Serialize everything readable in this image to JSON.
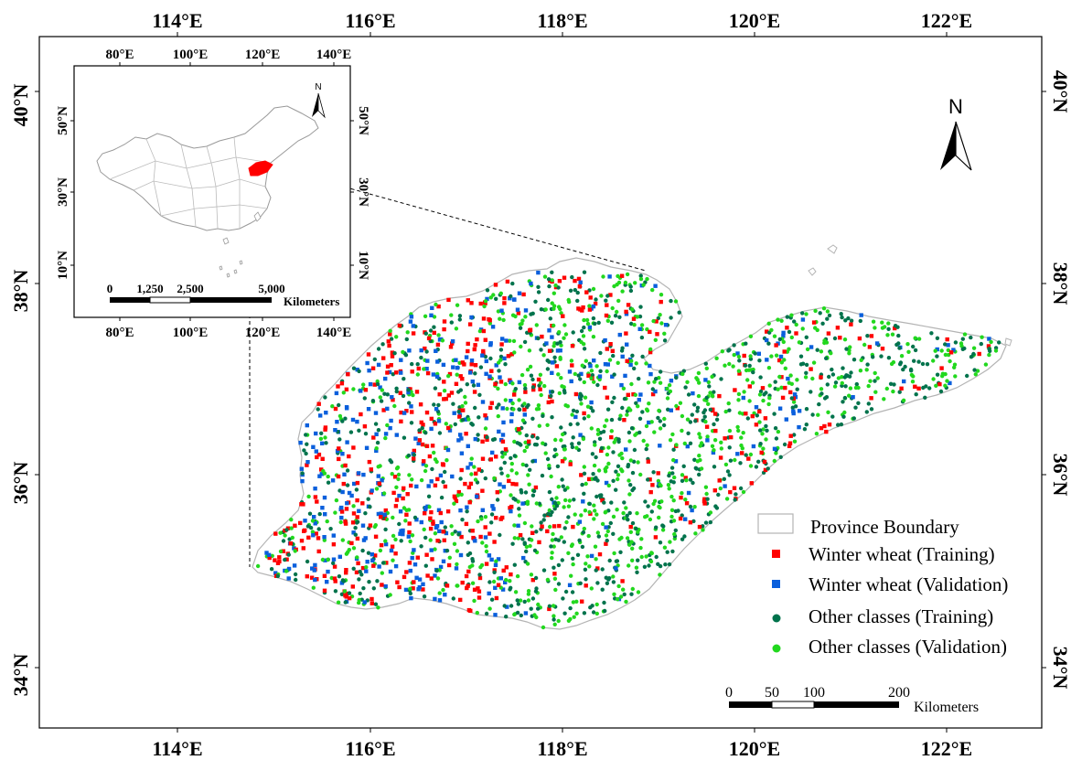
{
  "main_map": {
    "top_lon_labels": [
      "114°E",
      "116°E",
      "118°E",
      "120°E",
      "122°E"
    ],
    "bottom_lon_labels": [
      "114°E",
      "116°E",
      "118°E",
      "120°E",
      "122°E"
    ],
    "left_lat_labels": [
      "40°N",
      "38°N",
      "36°N",
      "34°N"
    ],
    "right_lat_labels": [
      "40°N",
      "38°N",
      "36°N",
      "34°N"
    ],
    "north_label": "N"
  },
  "inset_map": {
    "top_lon_labels": [
      "80°E",
      "100°E",
      "120°E",
      "140°E"
    ],
    "bottom_lon_labels": [
      "80°E",
      "100°E",
      "120°E",
      "140°E"
    ],
    "left_lat_labels": [
      "50°N",
      "30°N",
      "10°N"
    ],
    "right_lat_labels": [
      "50°N",
      "30°N",
      "10°N"
    ],
    "north_label": "N",
    "highlight_color": "#ff0000",
    "scale_labels": [
      "0",
      "1,250",
      "2,500",
      "5,000"
    ],
    "scale_unit": "Kilometers"
  },
  "legend": {
    "items": [
      {
        "label": "Province Boundary",
        "symbol": "outline-box",
        "color": "#ffffff"
      },
      {
        "label": "Winter wheat (Training)",
        "symbol": "square",
        "color": "#ff0000"
      },
      {
        "label": "Winter wheat (Validation)",
        "symbol": "square",
        "color": "#0a5fdc"
      },
      {
        "label": "Other classes (Training)",
        "symbol": "circle",
        "color": "#00734c"
      },
      {
        "label": "Other classes (Validation)",
        "symbol": "circle",
        "color": "#22d81e"
      }
    ]
  },
  "scale_bar": {
    "labels": [
      "0",
      "50",
      "100",
      "200"
    ],
    "unit": "Kilometers"
  },
  "colors": {
    "winter_wheat_training": "#ff0000",
    "winter_wheat_validation": "#0a5fdc",
    "other_training": "#00734c",
    "other_validation": "#22d81e",
    "boundary": "#b4b4b4"
  }
}
